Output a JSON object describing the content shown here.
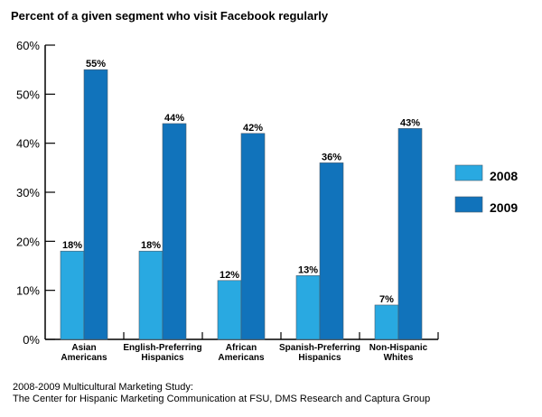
{
  "chart_data": {
    "type": "bar",
    "title": "Percent of a given segment who visit Facebook regularly",
    "xlabel": "",
    "ylabel": "",
    "ylim": [
      0,
      60
    ],
    "yticks": [
      "0%",
      "10%",
      "20%",
      "30%",
      "40%",
      "50%",
      "60%"
    ],
    "ytick_values": [
      0,
      10,
      20,
      30,
      40,
      50,
      60
    ],
    "categories": [
      [
        "Asian",
        "Americans"
      ],
      [
        "English-Preferring",
        "Hispanics"
      ],
      [
        "African",
        "Americans"
      ],
      [
        "Spanish-Preferring",
        "Hispanics"
      ],
      [
        "Non-Hispanic",
        "Whites"
      ]
    ],
    "series": [
      {
        "name": "2008",
        "color": "#29a9e1",
        "values": [
          18,
          18,
          12,
          13,
          7
        ],
        "labels": [
          "18%",
          "18%",
          "12%",
          "13%",
          "7%"
        ]
      },
      {
        "name": "2009",
        "color": "#1173bb",
        "values": [
          55,
          44,
          42,
          36,
          43
        ],
        "labels": [
          "55%",
          "44%",
          "42%",
          "36%",
          "43%"
        ]
      }
    ],
    "legend": {
      "placement": "right",
      "entries": [
        "2008",
        "2009"
      ]
    },
    "grid": false
  },
  "source": {
    "line1": "2008-2009 Multicultural Marketing Study:",
    "line2": "The Center for Hispanic Marketing Communication at FSU, DMS Research and Captura Group"
  }
}
